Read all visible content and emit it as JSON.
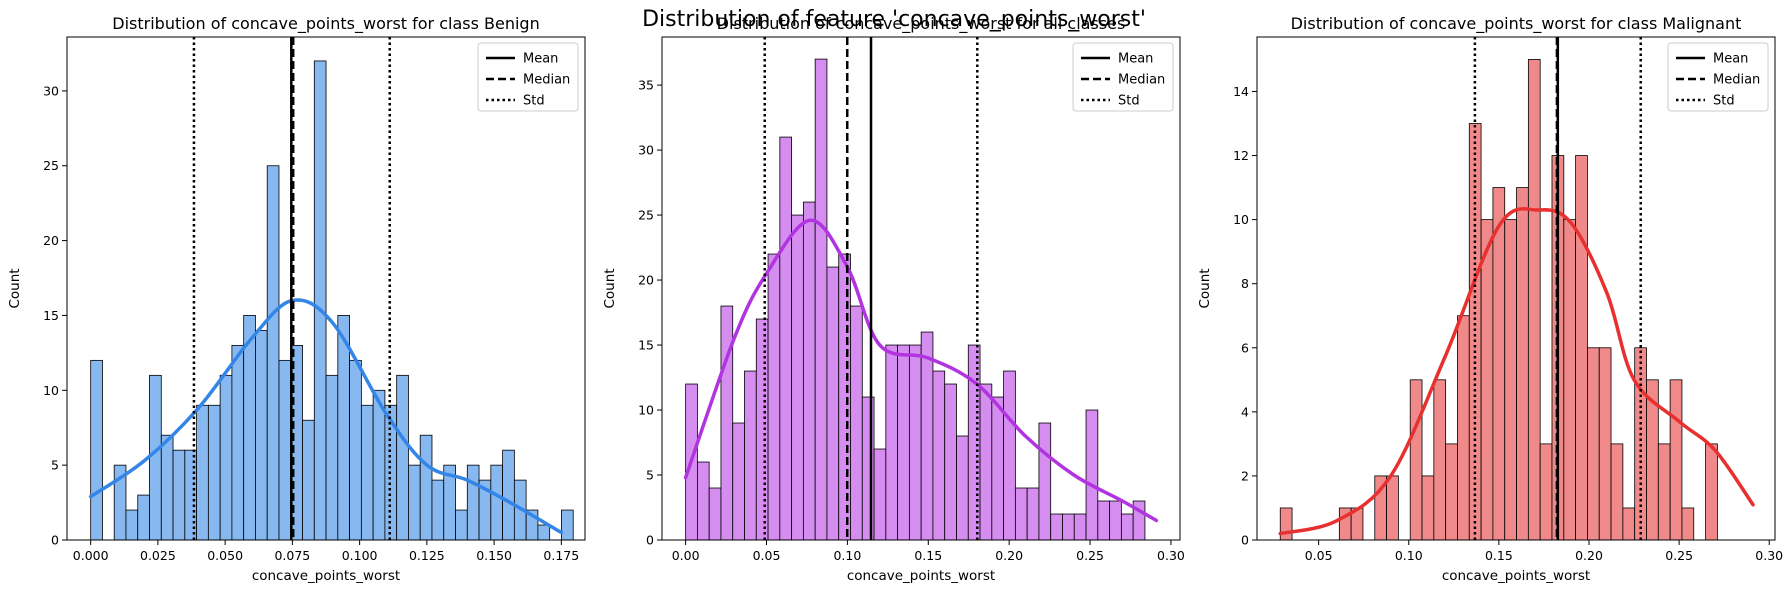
{
  "figure": {
    "title": "Distribution of feature 'concave_points_worst'"
  },
  "legend_labels": [
    "Mean",
    "Median",
    "Std"
  ],
  "chart_data": [
    {
      "type": "bar",
      "title": "Distribution of concave_points_worst for class Benign",
      "xlabel": "concave_points_worst",
      "ylabel": "Count",
      "xlim": [
        -0.0088,
        0.1838
      ],
      "ylim": [
        0,
        33.6
      ],
      "xticks": [
        0.0,
        0.025,
        0.05,
        0.075,
        0.1,
        0.125,
        0.15,
        0.175
      ],
      "xtick_labels": [
        "0.000",
        "0.025",
        "0.050",
        "0.075",
        "0.100",
        "0.125",
        "0.150",
        "0.175"
      ],
      "yticks": [
        0,
        5,
        10,
        15,
        20,
        25,
        30
      ],
      "bin_start": 0.0,
      "bin_width": 0.004376,
      "counts": [
        12,
        0,
        5,
        2,
        3,
        11,
        7,
        6,
        6,
        9,
        9,
        11,
        13,
        15,
        14,
        25,
        12,
        13,
        8,
        32,
        11,
        15,
        12,
        9,
        10,
        9,
        11,
        5,
        7,
        4,
        5,
        2,
        5,
        4,
        5,
        6,
        4,
        2,
        1,
        0,
        2
      ],
      "kde_x": [
        0.0,
        0.02,
        0.04,
        0.06,
        0.075,
        0.09,
        0.11,
        0.125,
        0.14,
        0.155,
        0.175
      ],
      "kde_y": [
        2.9,
        5.3,
        8.8,
        13.5,
        16.0,
        14.5,
        8.4,
        5.0,
        4.0,
        2.6,
        0.5
      ],
      "mean": 0.0746,
      "median": 0.0753,
      "std_low": 0.0384,
      "std_high": 0.1112,
      "color_fill": "#87b9f0",
      "color_line": "#3385e8"
    },
    {
      "type": "bar",
      "title": "Distribution of concave_points_worst for all classes",
      "xlabel": "concave_points_worst",
      "ylabel": "Count",
      "xlim": [
        -0.0146,
        0.3056
      ],
      "ylim": [
        0,
        38.7
      ],
      "xticks": [
        0.0,
        0.05,
        0.1,
        0.15,
        0.2,
        0.25,
        0.3
      ],
      "xtick_labels": [
        "0.00",
        "0.05",
        "0.10",
        "0.15",
        "0.20",
        "0.25",
        "0.30"
      ],
      "yticks": [
        0,
        5,
        10,
        15,
        20,
        25,
        30,
        35
      ],
      "bin_start": 0.0,
      "bin_width": 0.00728,
      "counts": [
        12,
        6,
        4,
        18,
        9,
        13,
        17,
        22,
        31,
        25,
        26,
        37,
        21,
        22,
        18,
        11,
        7,
        15,
        15,
        15,
        16,
        13,
        12,
        8,
        15,
        12,
        11,
        13,
        4,
        4,
        9,
        2,
        2,
        2,
        10,
        3,
        3,
        2,
        3,
        0
      ],
      "kde_x": [
        0.0,
        0.03,
        0.05,
        0.077,
        0.1,
        0.12,
        0.15,
        0.18,
        0.21,
        0.24,
        0.27,
        0.291
      ],
      "kde_y": [
        4.8,
        15.5,
        20.5,
        24.6,
        21.0,
        15.0,
        14.0,
        12.0,
        8.0,
        5.0,
        3.0,
        1.5
      ],
      "mean": 0.1146,
      "median": 0.0999,
      "std_low": 0.0489,
      "std_high": 0.1803,
      "color_fill": "#d58df0",
      "color_line": "#b134e0"
    },
    {
      "type": "bar",
      "title": "Distribution of concave_points_worst for class Malignant",
      "xlabel": "concave_points_worst",
      "ylabel": "Count",
      "xlim": [
        0.0158,
        0.3032
      ],
      "ylim": [
        0,
        15.7
      ],
      "xticks": [
        0.05,
        0.1,
        0.15,
        0.2,
        0.25,
        0.3
      ],
      "xtick_labels": [
        "0.05",
        "0.10",
        "0.15",
        "0.20",
        "0.25",
        "0.30"
      ],
      "yticks": [
        0,
        2,
        4,
        6,
        8,
        10,
        12,
        14
      ],
      "bin_start": 0.0287,
      "bin_width": 0.006555,
      "counts": [
        1,
        0,
        0,
        0,
        0,
        1,
        1,
        0,
        2,
        2,
        0,
        5,
        2,
        5,
        3,
        7,
        13,
        10,
        11,
        10,
        11,
        15,
        3,
        12,
        10,
        12,
        6,
        6,
        3,
        1,
        6,
        5,
        3,
        5,
        1,
        0,
        3
      ],
      "kde_x": [
        0.0287,
        0.06,
        0.09,
        0.12,
        0.15,
        0.172,
        0.19,
        0.21,
        0.225,
        0.25,
        0.27,
        0.291
      ],
      "kde_y": [
        0.2,
        0.6,
        2.0,
        5.7,
        9.8,
        10.3,
        9.9,
        7.7,
        5.0,
        3.7,
        2.8,
        1.1
      ],
      "mean": 0.1827,
      "median": 0.1822,
      "std_low": 0.1367,
      "std_high": 0.2287,
      "color_fill": "#f08a8a",
      "color_line": "#e83030"
    }
  ]
}
